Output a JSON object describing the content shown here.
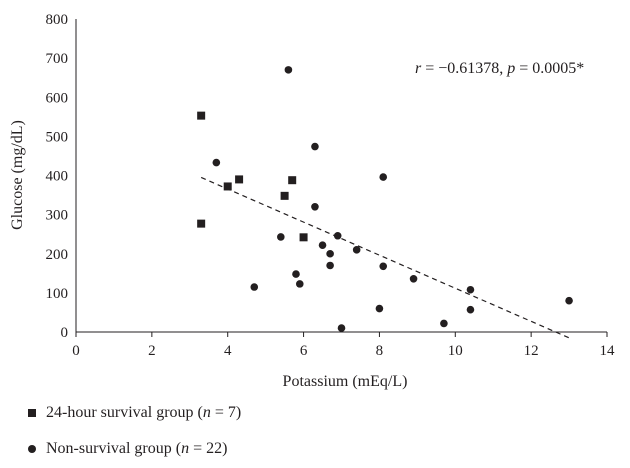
{
  "chart_data": {
    "type": "scatter",
    "title": "",
    "xlabel": "Potassium (mEq/L)",
    "ylabel": "Glucose (mg/dL)",
    "xlim": [
      0,
      14
    ],
    "ylim": [
      0,
      800
    ],
    "xticks": [
      "0",
      "2",
      "4",
      "6",
      "8",
      "10",
      "12",
      "14"
    ],
    "yticks": [
      "0",
      "100",
      "200",
      "300",
      "400",
      "500",
      "600",
      "700",
      "800"
    ],
    "grid": false,
    "legend_position": "bottom-left",
    "annotation": {
      "r_label": "r",
      "r_text": " = −0.61378, ",
      "p_label": "p",
      "p_text": " = 0.0005*"
    },
    "trendline": {
      "x": [
        3.3,
        13.0
      ],
      "y": [
        395,
        -15
      ]
    },
    "series": [
      {
        "legend_text": "24-hour survival group (",
        "legend_n": "n",
        "legend_rest": " = 7)",
        "marker": "square",
        "x": [
          3.3,
          3.3,
          4.0,
          4.3,
          5.5,
          5.7,
          6.0
        ],
        "y": [
          553,
          277,
          372,
          390,
          348,
          388,
          242
        ]
      },
      {
        "legend_text": "Non-survival group (",
        "legend_n": "n",
        "legend_rest": " = 22)",
        "marker": "circle",
        "x": [
          3.7,
          4.7,
          5.4,
          5.6,
          5.8,
          5.9,
          6.3,
          6.3,
          6.5,
          6.7,
          6.7,
          6.9,
          7.0,
          7.4,
          8.0,
          8.1,
          8.1,
          8.9,
          9.7,
          10.4,
          10.4,
          13.0
        ],
        "y": [
          433,
          115,
          243,
          670,
          148,
          123,
          474,
          320,
          222,
          200,
          170,
          246,
          10,
          210,
          60,
          168,
          396,
          136,
          22,
          108,
          57,
          80
        ]
      }
    ]
  }
}
